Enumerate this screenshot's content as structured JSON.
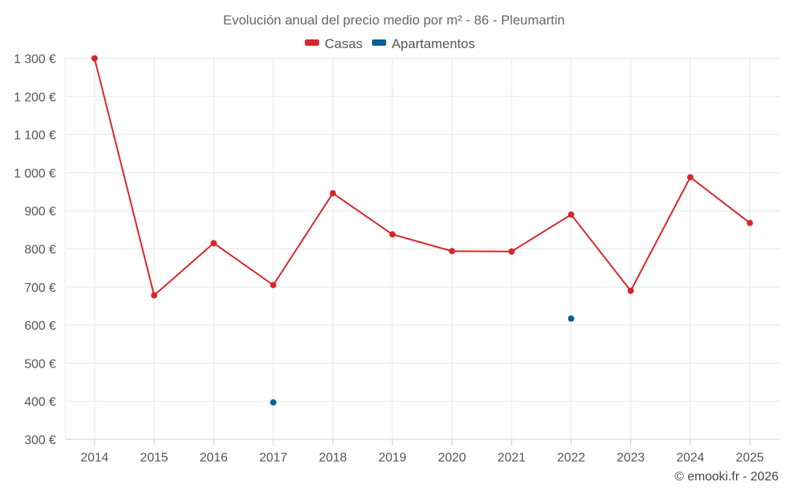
{
  "chart_data": {
    "type": "line",
    "title": "Evolución anual del precio medio por m² - 86 - Pleumartin",
    "xlabel": "",
    "ylabel": "",
    "categories": [
      "2014",
      "2015",
      "2016",
      "2017",
      "2018",
      "2019",
      "2020",
      "2021",
      "2022",
      "2023",
      "2024",
      "2025"
    ],
    "ylim": [
      300,
      1300
    ],
    "yticks": [
      300,
      400,
      500,
      600,
      700,
      800,
      900,
      1000,
      1100,
      1200,
      1300
    ],
    "ytick_labels": [
      "300 €",
      "400 €",
      "500 €",
      "600 €",
      "700 €",
      "800 €",
      "900 €",
      "1 000 €",
      "1 100 €",
      "1 200 €",
      "1 300 €"
    ],
    "grid": true,
    "legend_position": "top-center",
    "series": [
      {
        "name": "Casas",
        "color": "#d7262b",
        "values": [
          1300,
          678,
          815,
          705,
          946,
          838,
          794,
          793,
          890,
          690,
          988,
          868
        ]
      },
      {
        "name": "Apartamentos",
        "color": "#0a5f96",
        "values": [
          null,
          null,
          null,
          397,
          null,
          null,
          null,
          null,
          617,
          null,
          null,
          null
        ]
      }
    ],
    "credit": "© emooki.fr - 2026"
  }
}
